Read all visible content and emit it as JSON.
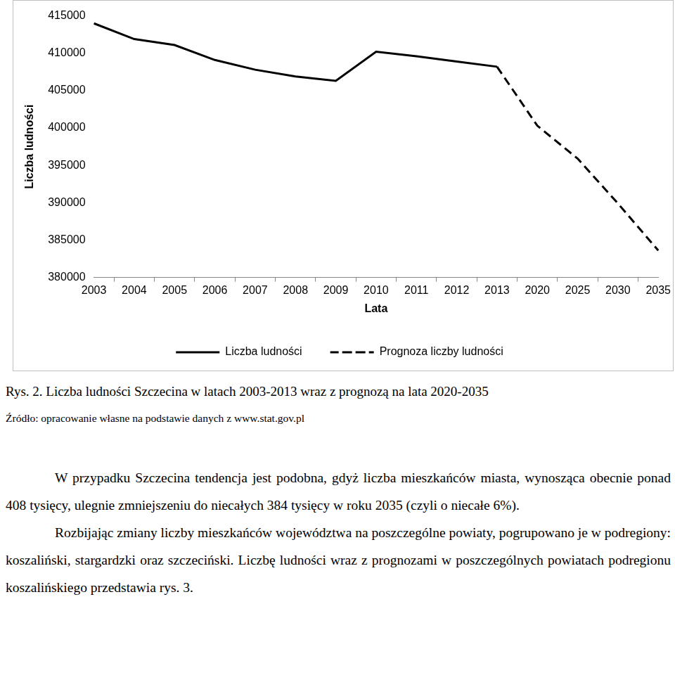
{
  "chart_data": {
    "type": "line",
    "x_label": "Lata",
    "y_label": "Liczba ludności",
    "categories": [
      "2003",
      "2004",
      "2005",
      "2006",
      "2007",
      "2008",
      "2009",
      "2010",
      "2011",
      "2012",
      "2013",
      "2020",
      "2025",
      "2030",
      "2035"
    ],
    "series": [
      {
        "name": "Liczba ludności",
        "color": "#000000",
        "line_style": "solid",
        "marker": "none",
        "values": [
          414000,
          411900,
          411100,
          409100,
          407800,
          406900,
          406300,
          410200,
          409600,
          408900,
          408200,
          null,
          null,
          null,
          null
        ]
      },
      {
        "name": "Prognoza liczby ludności",
        "color": "#000000",
        "line_style": "dashed",
        "marker": "none",
        "values": [
          null,
          null,
          null,
          null,
          null,
          null,
          null,
          null,
          null,
          null,
          408200,
          400300,
          395900,
          389900,
          383600
        ]
      }
    ],
    "ylim": [
      380000,
      415000
    ],
    "yticks": [
      380000,
      385000,
      390000,
      395000,
      400000,
      405000,
      410000,
      415000
    ],
    "grid": false,
    "legend": "bottom"
  },
  "caption": "Rys. 2. Liczba ludności Szczecina w latach 2003-2013 wraz z prognozą na lata 2020-2035",
  "source": "Źródło: opracowanie własne na podstawie danych z www.stat.gov.pl",
  "paragraphs": [
    "W przypadku Szczecina tendencja jest podobna, gdyż liczba mieszkańców miasta, wynosząca obecnie ponad 408 tysięcy, ulegnie zmniejszeniu do niecałych 384 tysięcy w roku 2035 (czyli o niecałe 6%).",
    "Rozbijając zmiany liczby mieszkańców województwa na poszczególne powiaty, pogrupowano je w podregiony: koszaliński, stargardzki oraz szczeciński. Liczbę ludności wraz z prognozami w poszczególnych powiatach podregionu koszalińskiego przedstawia rys. 3."
  ]
}
